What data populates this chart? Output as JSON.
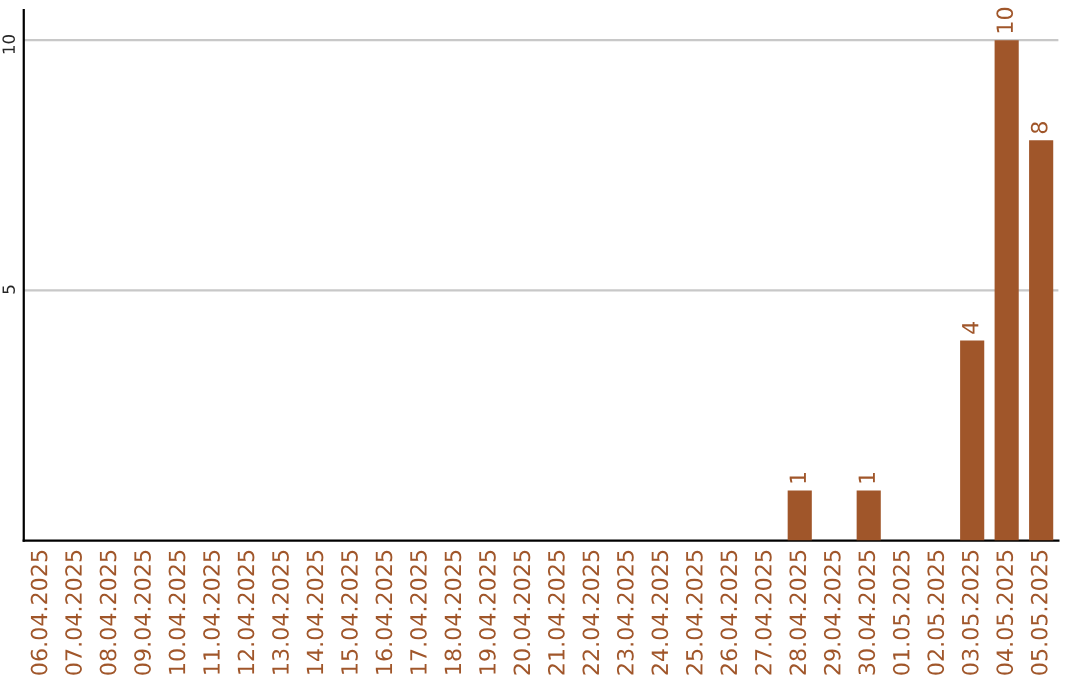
{
  "chart_data": {
    "type": "bar",
    "categories": [
      "06.04.2025",
      "07.04.2025",
      "08.04.2025",
      "09.04.2025",
      "10.04.2025",
      "11.04.2025",
      "12.04.2025",
      "13.04.2025",
      "14.04.2025",
      "15.04.2025",
      "16.04.2025",
      "17.04.2025",
      "18.04.2025",
      "19.04.2025",
      "20.04.2025",
      "21.04.2025",
      "22.04.2025",
      "23.04.2025",
      "24.04.2025",
      "25.04.2025",
      "26.04.2025",
      "27.04.2025",
      "28.04.2025",
      "29.04.2025",
      "30.04.2025",
      "01.05.2025",
      "02.05.2025",
      "03.05.2025",
      "04.05.2025",
      "05.05.2025"
    ],
    "values": [
      0,
      0,
      0,
      0,
      0,
      0,
      0,
      0,
      0,
      0,
      0,
      0,
      0,
      0,
      0,
      0,
      0,
      0,
      0,
      0,
      0,
      0,
      1,
      0,
      1,
      0,
      0,
      4,
      10,
      8
    ],
    "value_labels": [
      null,
      null,
      null,
      null,
      null,
      null,
      null,
      null,
      null,
      null,
      null,
      null,
      null,
      null,
      null,
      null,
      null,
      null,
      null,
      null,
      null,
      null,
      "1",
      null,
      "1",
      null,
      null,
      "4",
      "10",
      "8"
    ],
    "color": "#a0562a",
    "ylim": [
      0,
      10.6
    ],
    "yticks": [
      5,
      10
    ],
    "grid": "y"
  }
}
